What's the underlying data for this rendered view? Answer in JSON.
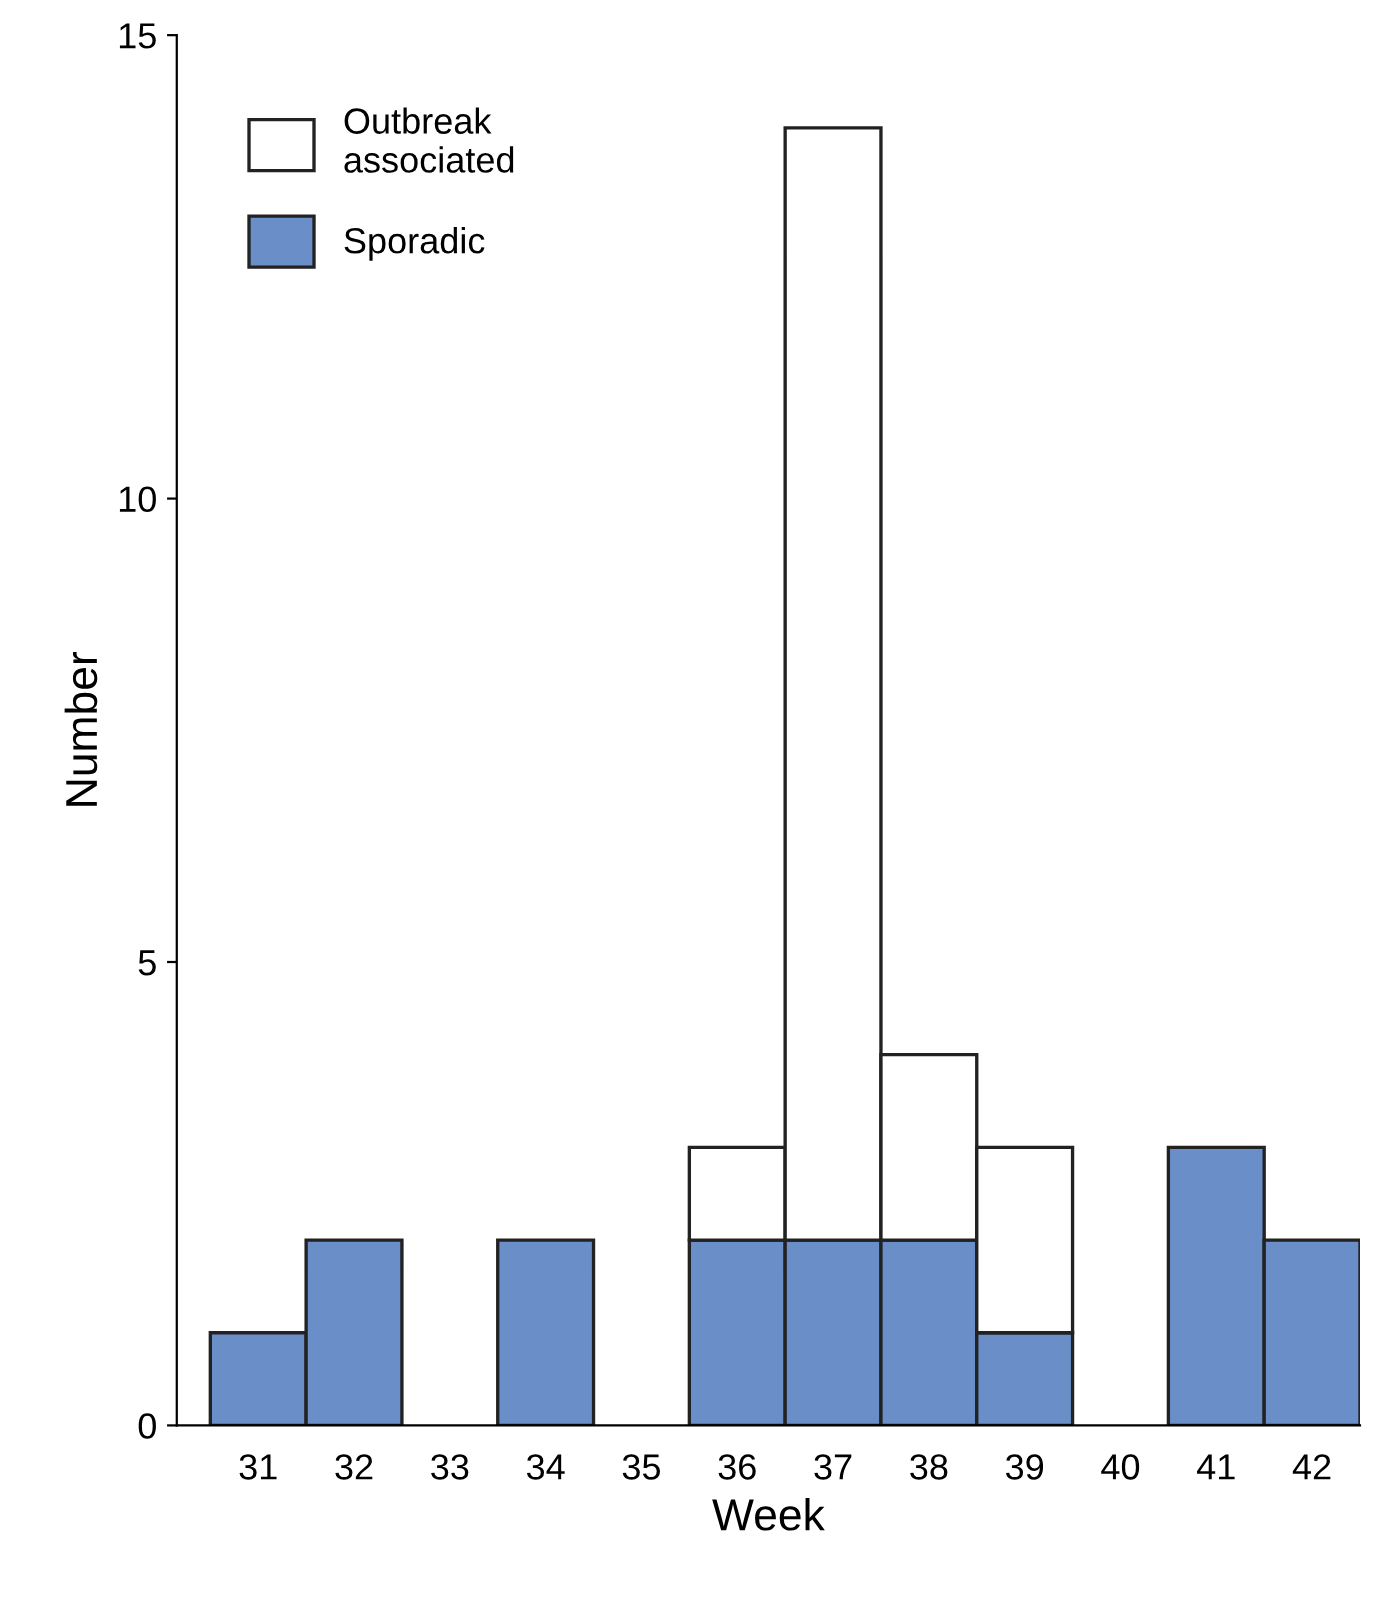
{
  "chart_data": {
    "type": "bar",
    "stacked": true,
    "xlabel": "Week",
    "ylabel": "Number",
    "categories": [
      "31",
      "32",
      "33",
      "34",
      "35",
      "36",
      "37",
      "38",
      "39",
      "40",
      "41",
      "42"
    ],
    "series": [
      {
        "name": "Sporadic",
        "color": "#6a8fc8",
        "values": [
          1,
          2,
          0,
          2,
          0,
          2,
          2,
          2,
          1,
          0,
          3,
          2
        ]
      },
      {
        "name": "Outbreak\nassociated",
        "color": "#ffffff",
        "values": [
          0,
          0,
          0,
          0,
          0,
          1,
          12,
          2,
          2,
          0,
          0,
          0
        ]
      }
    ],
    "ylim": [
      0,
      15
    ],
    "yticks": [
      0,
      5,
      10,
      15
    ],
    "grid": false,
    "legend": "top left"
  }
}
